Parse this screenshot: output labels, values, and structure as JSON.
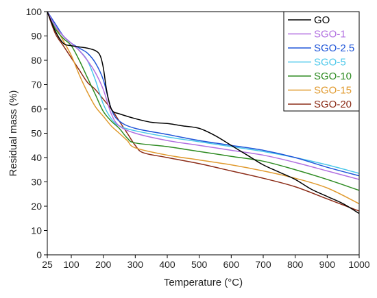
{
  "chart_data": {
    "type": "line",
    "xlabel": "Temperature (°C)",
    "ylabel": "Residual mass (%)",
    "xlim": [
      25,
      1000
    ],
    "ylim": [
      0,
      100
    ],
    "xticks": [
      25,
      100,
      200,
      300,
      400,
      500,
      600,
      700,
      800,
      900,
      1000
    ],
    "yticks": [
      0,
      10,
      20,
      30,
      40,
      50,
      60,
      70,
      80,
      90,
      100
    ],
    "grid": false,
    "legend_position": "top-right",
    "series": [
      {
        "name": "GO",
        "color": "#000000",
        "x": [
          25,
          50,
          75,
          100,
          125,
          150,
          175,
          190,
          200,
          210,
          220,
          230,
          250,
          300,
          350,
          400,
          450,
          500,
          550,
          600,
          650,
          700,
          750,
          800,
          850,
          900,
          950,
          1000
        ],
        "y": [
          100,
          92,
          87,
          86,
          85.5,
          85,
          84,
          82,
          77,
          68,
          62,
          59,
          58,
          56,
          54.5,
          54,
          53,
          52,
          49,
          45,
          41,
          37,
          34,
          31,
          27,
          24,
          21,
          17
        ]
      },
      {
        "name": "SGO-1",
        "color": "#b16fe0",
        "x": [
          25,
          50,
          75,
          100,
          125,
          150,
          175,
          200,
          225,
          250,
          300,
          400,
          500,
          600,
          700,
          800,
          900,
          1000
        ],
        "y": [
          100,
          94,
          90,
          87,
          84,
          80,
          75,
          68,
          58,
          53,
          50,
          47,
          45,
          43,
          41,
          38,
          34.5,
          31
        ]
      },
      {
        "name": "SGO-2.5",
        "color": "#1f55d8",
        "x": [
          25,
          50,
          75,
          100,
          125,
          150,
          175,
          200,
          225,
          250,
          300,
          400,
          500,
          600,
          700,
          800,
          900,
          1000
        ],
        "y": [
          100,
          95,
          90,
          87,
          85,
          83,
          79,
          72,
          60,
          55,
          52,
          49.5,
          47,
          45,
          43,
          40,
          36,
          32.5
        ]
      },
      {
        "name": "SGO-5",
        "color": "#4cc8ea",
        "x": [
          25,
          50,
          75,
          100,
          125,
          150,
          175,
          200,
          225,
          250,
          300,
          400,
          500,
          600,
          700,
          800,
          900,
          1000
        ],
        "y": [
          100,
          94,
          90,
          87,
          84,
          80,
          72,
          62,
          56,
          53,
          51,
          48.5,
          46.5,
          44.5,
          42.5,
          40,
          37,
          33.5
        ]
      },
      {
        "name": "SGO-10",
        "color": "#2e8b22",
        "x": [
          25,
          50,
          75,
          100,
          125,
          150,
          175,
          200,
          225,
          250,
          275,
          300,
          400,
          500,
          600,
          700,
          800,
          900,
          1000
        ],
        "y": [
          100,
          93,
          89,
          86,
          80,
          73,
          66,
          59,
          55,
          52,
          48,
          46,
          44.5,
          42.5,
          40.5,
          38.5,
          35,
          31,
          26.5
        ]
      },
      {
        "name": "SGO-15",
        "color": "#e09a2e",
        "x": [
          25,
          50,
          75,
          100,
          125,
          150,
          175,
          200,
          225,
          250,
          275,
          300,
          400,
          500,
          600,
          700,
          800,
          900,
          1000
        ],
        "y": [
          100,
          94,
          88,
          82,
          74,
          67,
          61,
          57,
          53,
          50,
          47,
          44,
          41,
          39,
          37,
          34.5,
          31.5,
          27.5,
          21
        ]
      },
      {
        "name": "SGO-20",
        "color": "#8b2b16",
        "x": [
          25,
          50,
          75,
          100,
          125,
          150,
          175,
          200,
          225,
          250,
          275,
          300,
          325,
          400,
          500,
          600,
          700,
          800,
          900,
          1000
        ],
        "y": [
          100,
          91,
          86,
          81,
          76,
          71,
          68,
          64,
          60,
          55,
          50,
          45,
          42,
          40,
          37.5,
          34.5,
          31.5,
          28,
          23,
          18
        ]
      }
    ]
  }
}
